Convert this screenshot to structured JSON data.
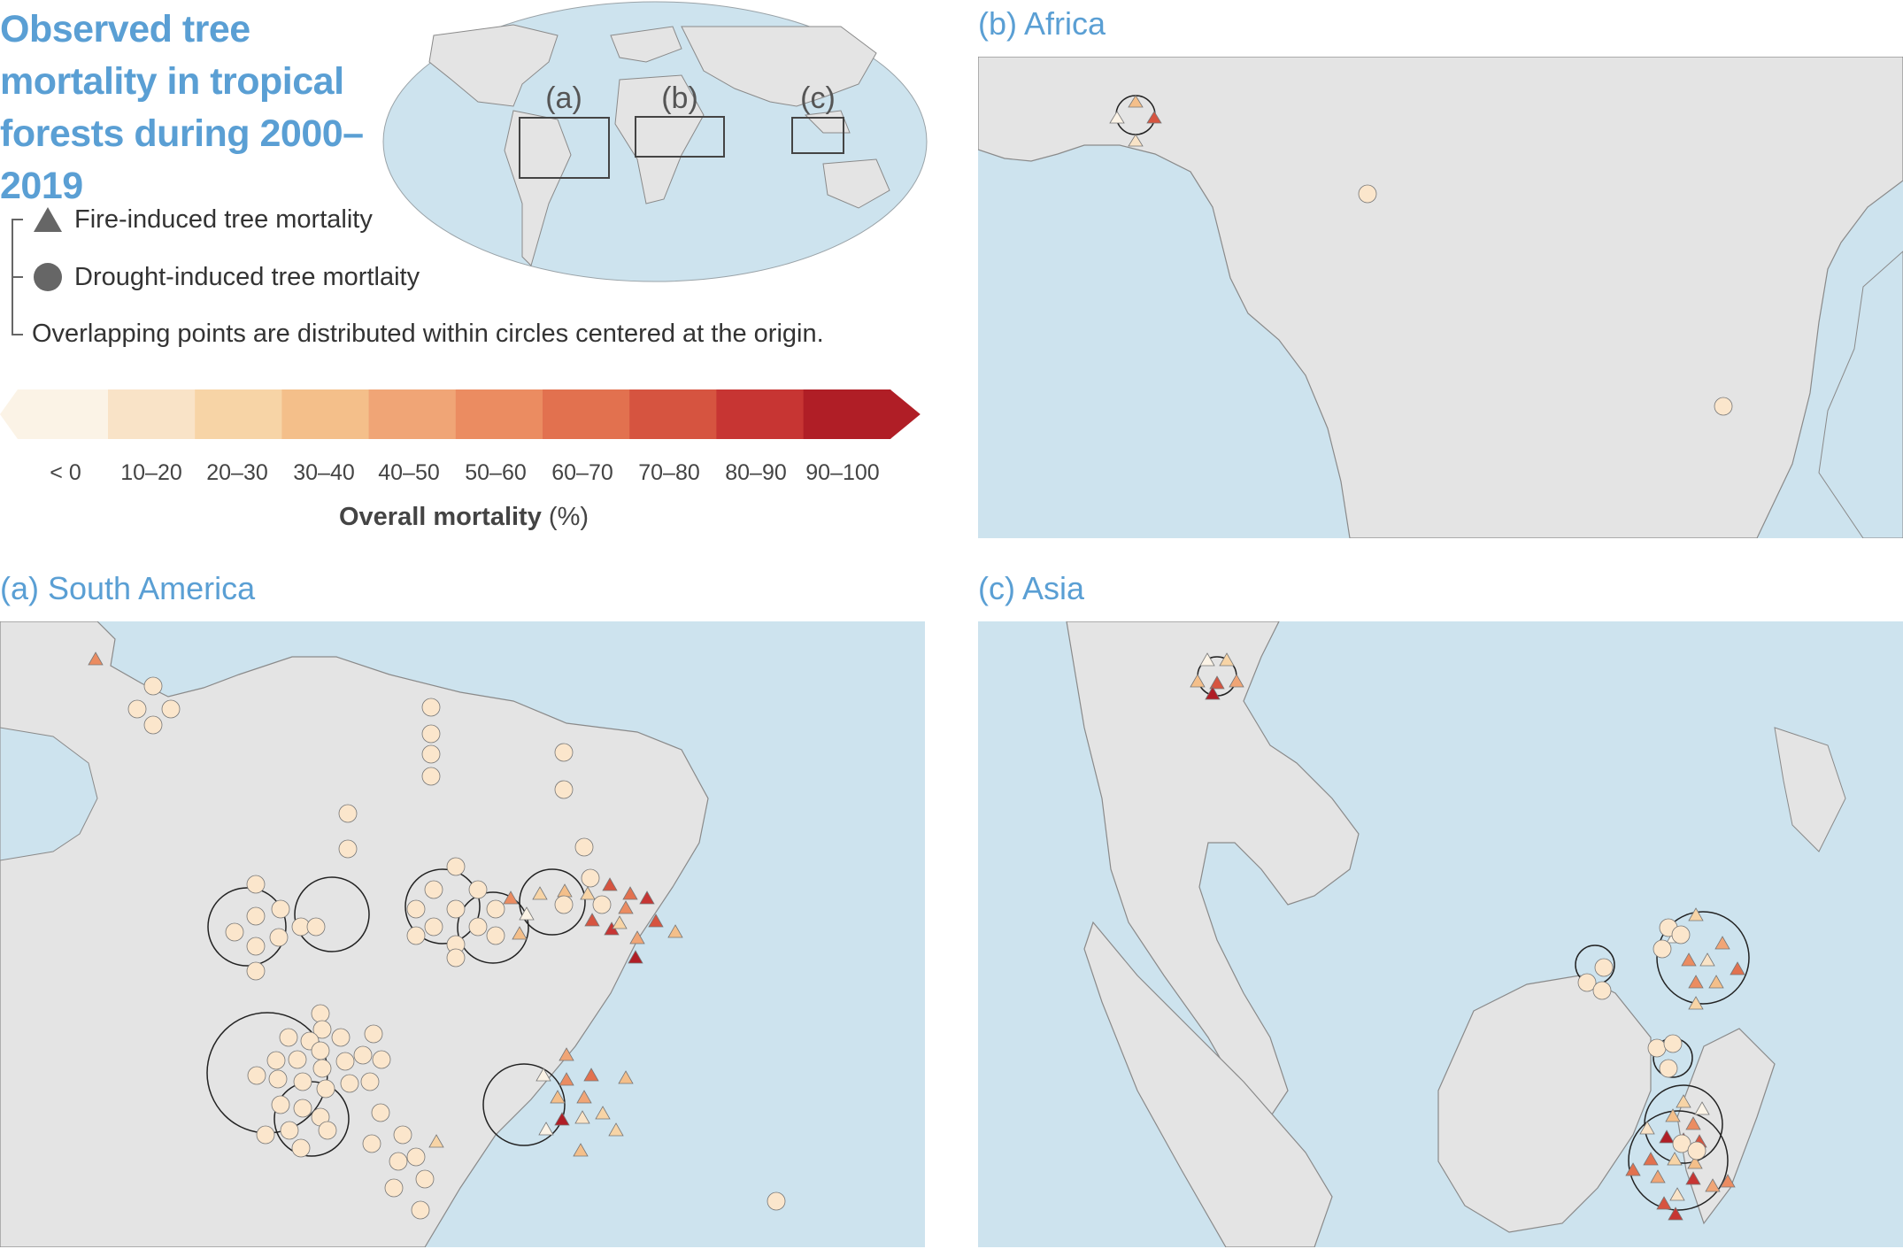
{
  "title": "Observed tree mortality in tropical forests during 2000–2019",
  "legend": {
    "fire": "Fire-induced tree mortality",
    "drought": "Drought-induced tree mortlaity",
    "note": "Overlapping points are distributed within circles centered at the origin."
  },
  "inset_labels": [
    "(a)",
    "(b)",
    "(c)"
  ],
  "colorbar": {
    "title": "Overall mortality",
    "unit": "(%)",
    "ticks": [
      "< 0",
      "10–20",
      "20–30",
      "30–40",
      "40–50",
      "50–60",
      "60–70",
      "70–80",
      "80–90",
      "90–100"
    ],
    "colors": [
      "#fbf3e6",
      "#f9e3c7",
      "#f7d4a6",
      "#f4bf8a",
      "#f0a576",
      "#eb8c61",
      "#e2714f",
      "#d65440",
      "#c73533",
      "#b01e26"
    ]
  },
  "colors": {
    "ocean": "#cde3ee",
    "land": "#e4e4e4",
    "accent": "#5a9fd4"
  },
  "panels": {
    "africa": {
      "label": "(b) Africa"
    },
    "south_america": {
      "label": "(a) South America"
    },
    "asia": {
      "label": "(c) Asia"
    }
  }
}
